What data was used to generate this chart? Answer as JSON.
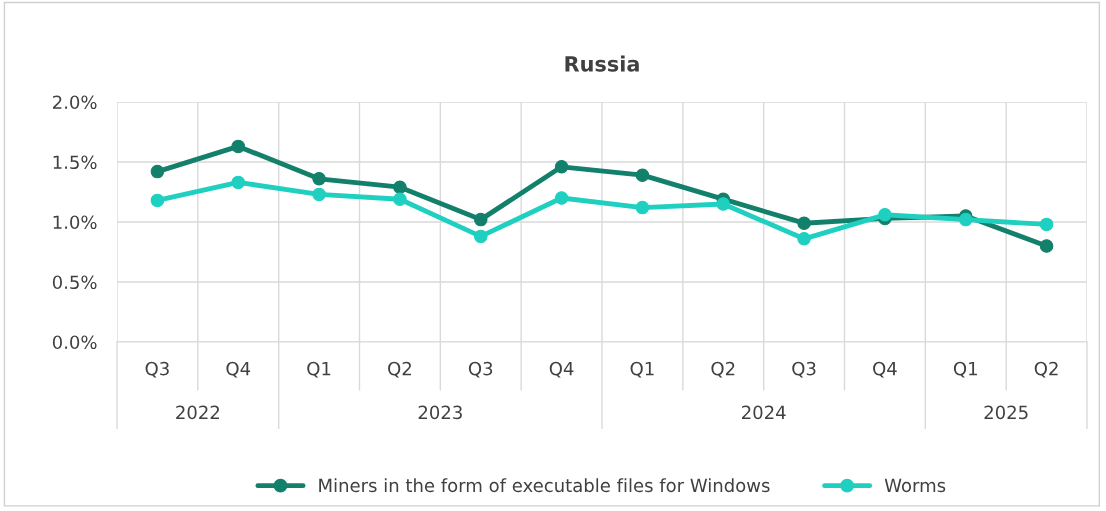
{
  "chart_data": {
    "type": "line",
    "title": "Russia",
    "categories": [
      "Q3",
      "Q4",
      "Q1",
      "Q2",
      "Q3",
      "Q4",
      "Q1",
      "Q2",
      "Q3",
      "Q4",
      "Q1",
      "Q2"
    ],
    "series": [
      {
        "name": "Miners in the form of executable files for Windows",
        "color": "#13806b",
        "values": [
          1.42,
          1.63,
          1.36,
          1.29,
          1.02,
          1.46,
          1.39,
          1.19,
          0.99,
          1.03,
          1.05,
          0.8
        ]
      },
      {
        "name": "Worms",
        "color": "#1fd0c1",
        "values": [
          1.18,
          1.33,
          1.23,
          1.19,
          0.88,
          1.2,
          1.12,
          1.15,
          0.86,
          1.06,
          1.02,
          0.98
        ]
      }
    ],
    "annotations": [
      "2022",
      "2023",
      "2024",
      "2025"
    ],
    "ylim": [
      0,
      2
    ],
    "yticks": [
      {
        "value": 0,
        "label": "0.0%"
      },
      {
        "value": 0.5,
        "label": "0.5%"
      },
      {
        "value": 1,
        "label": "1.0%"
      },
      {
        "value": 1.5,
        "label": "1.5%"
      },
      {
        "value": 2,
        "label": "2.0%"
      }
    ],
    "grid": true,
    "legend": "bottom",
    "marker": "circle",
    "line_style": "solid"
  }
}
